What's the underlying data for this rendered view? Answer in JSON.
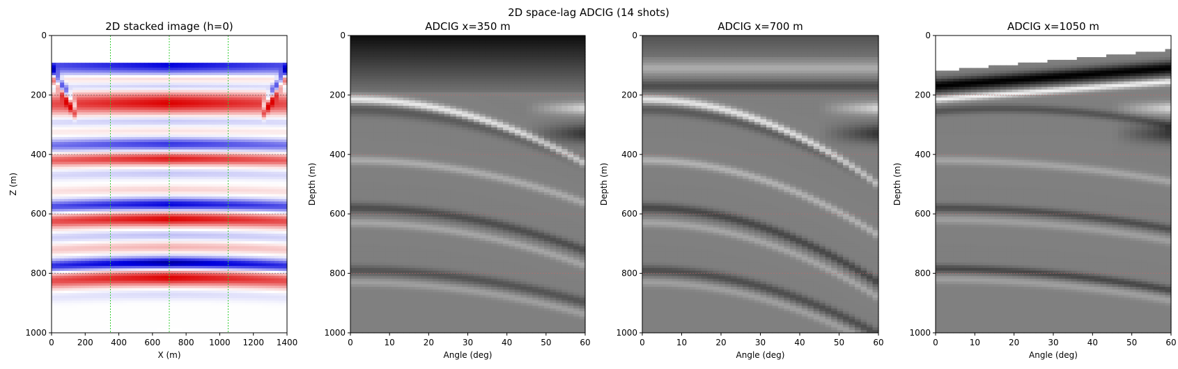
{
  "suptitle": "2D space-lag ADCIG (14 shots)",
  "chart_data": [
    {
      "type": "heatmap",
      "title": "2D stacked image (h=0)",
      "xlabel": "X (m)",
      "ylabel": "Z (m)",
      "xlim": [
        0,
        1400
      ],
      "ylim": [
        1000,
        0
      ],
      "xticks": [
        "0",
        "200",
        "400",
        "600",
        "800",
        "1000",
        "1200",
        "1400"
      ],
      "yticks": [
        "0",
        "200",
        "400",
        "600",
        "800",
        "1000"
      ],
      "colormap": "seismic",
      "colors": {
        "positive": "#dd0000",
        "negative": "#0000dd",
        "strong_negative": "#000066",
        "zero": "#ffffff"
      },
      "cig_locations_x": [
        350,
        700,
        1050
      ],
      "cig_line_color": "#33cc33",
      "reflector_depths": [
        200,
        400,
        600,
        800
      ],
      "reflector_line_color": "#444444",
      "bands": [
        {
          "z": 100,
          "amp": -1.0,
          "w": 22
        },
        {
          "z": 145,
          "amp": 0.25,
          "w": 10
        },
        {
          "z": 175,
          "amp": -0.25,
          "w": 10
        },
        {
          "z": 230,
          "amp": 1.0,
          "w": 24
        },
        {
          "z": 290,
          "amp": -0.25,
          "w": 12
        },
        {
          "z": 325,
          "amp": 0.12,
          "w": 10
        },
        {
          "z": 370,
          "amp": -0.8,
          "w": 14
        },
        {
          "z": 420,
          "amp": 0.9,
          "w": 14
        },
        {
          "z": 470,
          "amp": -0.22,
          "w": 12
        },
        {
          "z": 525,
          "amp": 0.18,
          "w": 10
        },
        {
          "z": 575,
          "amp": -1.0,
          "w": 14
        },
        {
          "z": 625,
          "amp": 1.0,
          "w": 16
        },
        {
          "z": 680,
          "amp": -0.25,
          "w": 12
        },
        {
          "z": 720,
          "amp": 0.3,
          "w": 12
        },
        {
          "z": 775,
          "amp": -1.2,
          "w": 14
        },
        {
          "z": 825,
          "amp": 1.0,
          "w": 18
        },
        {
          "z": 880,
          "amp": -0.15,
          "w": 14
        }
      ]
    },
    {
      "type": "heatmap",
      "title": "ADCIG x=350 m",
      "xlabel": "Angle (deg)",
      "ylabel": "Depth (m)",
      "xlim": [
        0,
        60
      ],
      "ylim": [
        1000,
        0
      ],
      "xticks": [
        "0",
        "10",
        "20",
        "30",
        "40",
        "50",
        "60"
      ],
      "yticks": [
        "0",
        "200",
        "400",
        "600",
        "800",
        "1000"
      ],
      "colormap": "gray",
      "reflector_depths": [
        200,
        400,
        600,
        800
      ],
      "reflector_line_color": "#cc6666",
      "top_dark_depth": 175,
      "events": [
        {
          "z0": 215,
          "curv": 0.06,
          "amp": 0.85,
          "w": 10
        },
        {
          "z0": 250,
          "curv": 0.05,
          "amp": -0.3,
          "w": 14
        },
        {
          "z0": 420,
          "curv": 0.04,
          "amp": 0.35,
          "w": 10
        },
        {
          "z0": 580,
          "curv": 0.04,
          "amp": -0.4,
          "w": 12
        },
        {
          "z0": 630,
          "curv": 0.04,
          "amp": 0.3,
          "w": 10
        },
        {
          "z0": 790,
          "curv": 0.03,
          "amp": -0.35,
          "w": 12
        },
        {
          "z0": 830,
          "curv": 0.03,
          "amp": 0.25,
          "w": 10
        }
      ]
    },
    {
      "type": "heatmap",
      "title": "ADCIG x=700 m",
      "xlabel": "Angle (deg)",
      "ylabel": "Depth (m)",
      "xlim": [
        0,
        60
      ],
      "ylim": [
        1000,
        0
      ],
      "xticks": [
        "0",
        "10",
        "20",
        "30",
        "40",
        "50",
        "60"
      ],
      "yticks": [
        "0",
        "200",
        "400",
        "600",
        "800",
        "1000"
      ],
      "colormap": "gray",
      "reflector_depths": [
        200,
        400,
        600,
        800
      ],
      "reflector_line_color": "#cc6666",
      "top_dark_depth": 60,
      "events": [
        {
          "z0": 110,
          "curv": 0.0,
          "amp": 0.35,
          "w": 14
        },
        {
          "z0": 170,
          "curv": 0.0,
          "amp": -0.4,
          "w": 14
        },
        {
          "z0": 215,
          "curv": 0.08,
          "amp": 0.8,
          "w": 10
        },
        {
          "z0": 250,
          "curv": 0.07,
          "amp": -0.3,
          "w": 12
        },
        {
          "z0": 420,
          "curv": 0.07,
          "amp": 0.4,
          "w": 10
        },
        {
          "z0": 580,
          "curv": 0.07,
          "amp": -0.45,
          "w": 12
        },
        {
          "z0": 630,
          "curv": 0.07,
          "amp": 0.3,
          "w": 10
        },
        {
          "z0": 790,
          "curv": 0.06,
          "amp": -0.4,
          "w": 12
        },
        {
          "z0": 830,
          "curv": 0.06,
          "amp": 0.25,
          "w": 10
        }
      ]
    },
    {
      "type": "heatmap",
      "title": "ADCIG x=1050 m",
      "xlabel": "Angle (deg)",
      "ylabel": "Depth (m)",
      "xlim": [
        0,
        60
      ],
      "ylim": [
        1000,
        0
      ],
      "xticks": [
        "0",
        "10",
        "20",
        "30",
        "40",
        "50",
        "60"
      ],
      "yticks": [
        "0",
        "200",
        "400",
        "600",
        "800",
        "1000"
      ],
      "colormap": "gray",
      "reflector_depths": [
        200,
        400,
        600,
        800
      ],
      "reflector_line_color": "#cc6666",
      "top_white_depth": 120,
      "events": [
        {
          "z0": 170,
          "curv": 0.0,
          "amp": -1.0,
          "w": 16
        },
        {
          "z0": 215,
          "curv": 0.0,
          "amp": 0.9,
          "w": 8
        },
        {
          "z0": 255,
          "curv": 0.03,
          "amp": -0.35,
          "w": 10
        },
        {
          "z0": 420,
          "curv": 0.02,
          "amp": 0.3,
          "w": 10
        },
        {
          "z0": 580,
          "curv": 0.02,
          "amp": -0.4,
          "w": 10
        },
        {
          "z0": 620,
          "curv": 0.02,
          "amp": 0.25,
          "w": 10
        },
        {
          "z0": 785,
          "curv": 0.02,
          "amp": -0.45,
          "w": 10
        },
        {
          "z0": 820,
          "curv": 0.02,
          "amp": 0.25,
          "w": 10
        }
      ]
    }
  ]
}
